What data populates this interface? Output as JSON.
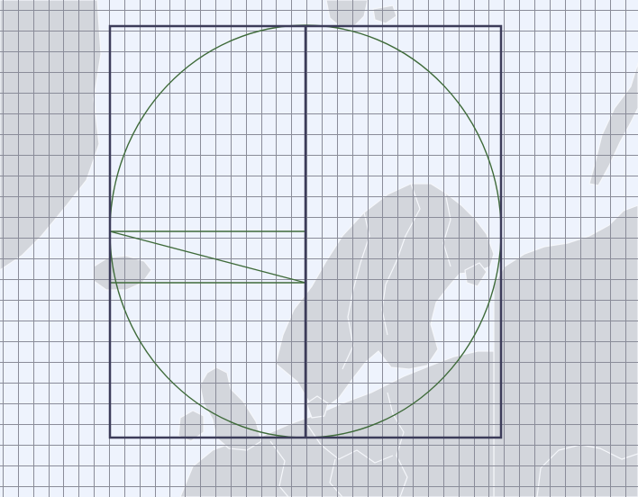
{
  "map": {
    "colors": {
      "sea": "#eef3fd",
      "land": "#d3d6dc",
      "land_border": "#f5f7fb",
      "grid": "#8a8c99",
      "frame": "#3c3c5a",
      "construction": "#3f6b3a"
    },
    "graticule": {
      "vertical_lines": 42,
      "horizontal_lines": 24
    },
    "overlay": {
      "shapes": [
        "frame-rectangle",
        "center-divider",
        "inscribed-circle",
        "horizontal-construction-lines",
        "diagonal-construction-line"
      ]
    }
  }
}
